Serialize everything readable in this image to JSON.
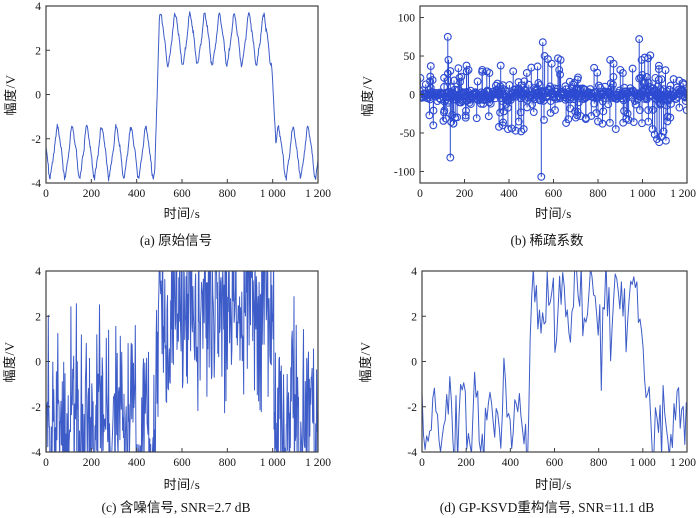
{
  "figure": {
    "background": "#ffffff"
  },
  "colors": {
    "line": "#3d5cc8",
    "stem": "#2d4bd1",
    "frame": "#3f3f3f",
    "text": "#141414"
  },
  "chart_data": [
    {
      "id": "a",
      "type": "line",
      "caption": "(a) 原始信号",
      "xlabel": "时间/s",
      "ylabel": "幅度/V",
      "xlim": [
        0,
        1200
      ],
      "ylim": [
        -4,
        4
      ],
      "xticks": [
        0,
        200,
        400,
        600,
        800,
        1000,
        1200
      ],
      "xtick_labels": [
        "0",
        "200",
        "400",
        "600",
        "800",
        "1 000",
        "1 200"
      ],
      "yticks": [
        -4,
        -2,
        0,
        2,
        4
      ],
      "ytick_labels": [
        "-4",
        "-2",
        "0",
        "2",
        "4"
      ],
      "signal": {
        "seed": 7,
        "dt": 2,
        "low_level": -2.6,
        "high_level": 2.5,
        "rise": [
          480,
          500
        ],
        "fall": [
          995,
          1015
        ],
        "sine_amp": 1.05,
        "sine_period": 65,
        "sine_phase": 2.9,
        "harmonic_amp": 0.13,
        "noise_sigma": 0.06,
        "spike_prob": 0,
        "spike_scale": 0
      },
      "description": "65 s sinusoid of ±1.05 V riding on a two-level signal: -2.6 V for 0-480 s and 1015-1200 s, +2.5 V burst for 500-995 s"
    },
    {
      "id": "b",
      "type": "stem",
      "caption": "(b) 稀疏系数",
      "xlabel": "时间/s",
      "ylabel": "幅度/V",
      "xlim": [
        0,
        1200
      ],
      "ylim": [
        -115,
        115
      ],
      "xticks": [
        0,
        200,
        400,
        600,
        800,
        1000,
        1200
      ],
      "xtick_labels": [
        "0",
        "200",
        "400",
        "600",
        "800",
        "1 000",
        "1 200"
      ],
      "yticks": [
        -100,
        -50,
        0,
        50,
        100
      ],
      "ytick_labels": [
        "-100",
        "-50",
        "0",
        "50",
        "100"
      ],
      "stems": {
        "seed": 11,
        "dense_dt": 3,
        "dense_sigma": 5,
        "dense_clip": 13,
        "medium_count": 120,
        "medium_min": 10,
        "medium_max": 38,
        "medium_power": 1.3,
        "outliers": [
          [
            60,
            -40
          ],
          [
            125,
            75
          ],
          [
            128,
            45
          ],
          [
            136,
            -82
          ],
          [
            150,
            -38
          ],
          [
            158,
            -30
          ],
          [
            210,
            30
          ],
          [
            218,
            32
          ],
          [
            280,
            32
          ],
          [
            300,
            30
          ],
          [
            312,
            28
          ],
          [
            355,
            -42
          ],
          [
            372,
            -40
          ],
          [
            395,
            -45
          ],
          [
            412,
            -44
          ],
          [
            430,
            -47
          ],
          [
            455,
            -48
          ],
          [
            466,
            -45
          ],
          [
            480,
            28
          ],
          [
            500,
            35
          ],
          [
            545,
            -107
          ],
          [
            552,
            68
          ],
          [
            560,
            50
          ],
          [
            575,
            46
          ],
          [
            592,
            40
          ],
          [
            620,
            47
          ],
          [
            632,
            45
          ],
          [
            700,
            -30
          ],
          [
            722,
            -28
          ],
          [
            745,
            -32
          ],
          [
            770,
            -28
          ],
          [
            800,
            -35
          ],
          [
            820,
            -38
          ],
          [
            855,
            45
          ],
          [
            870,
            40
          ],
          [
            880,
            -45
          ],
          [
            900,
            32
          ],
          [
            912,
            28
          ],
          [
            985,
            72
          ],
          [
            996,
            45
          ],
          [
            1010,
            48
          ],
          [
            1025,
            47
          ],
          [
            1035,
            51
          ],
          [
            1045,
            -45
          ],
          [
            1055,
            -52
          ],
          [
            1065,
            -58
          ],
          [
            1075,
            -62
          ],
          [
            1085,
            -55
          ],
          [
            1095,
            -48
          ],
          [
            1105,
            -60
          ],
          [
            1112,
            -35
          ],
          [
            1125,
            -30
          ],
          [
            1140,
            20
          ],
          [
            1165,
            18
          ],
          [
            1182,
            15
          ]
        ]
      },
      "description": "sparse coefficient stem plot, dense cluster within ±10 V around zero across 0-1200 s with isolated spikes up to +75/-107 V"
    },
    {
      "id": "c",
      "type": "line",
      "caption": "(c) 含噪信号, SNR=2.7 dB",
      "snr_db": 2.7,
      "xlabel": "时间/s",
      "ylabel": "幅度/V",
      "xlim": [
        0,
        1200
      ],
      "ylim": [
        -4,
        4
      ],
      "xticks": [
        0,
        200,
        400,
        600,
        800,
        1000,
        1200
      ],
      "xtick_labels": [
        "0",
        "200",
        "400",
        "600",
        "800",
        "1 000",
        "1 200"
      ],
      "yticks": [
        -4,
        -2,
        0,
        2,
        4
      ],
      "ytick_labels": [
        "-4",
        "-2",
        "0",
        "2",
        "4"
      ],
      "signal": {
        "seed": 23,
        "dt": 2,
        "low_level": -2.6,
        "high_level": 2.5,
        "rise": [
          480,
          500
        ],
        "fall": [
          995,
          1015
        ],
        "sine_amp": 1.05,
        "sine_period": 65,
        "sine_phase": 2.9,
        "harmonic_amp": 0.13,
        "noise_sigma": 1.9,
        "spike_prob": 0,
        "spike_scale": 0
      },
      "description": "original signal plus heavy Gaussian noise, SNR 2.7 dB, display clipped to ±4 V"
    },
    {
      "id": "d",
      "type": "line",
      "caption": "(d) GP-KSVD重构信号, SNR=11.1 dB",
      "snr_db": 11.1,
      "xlabel": "时间/s",
      "ylabel": "幅度/V",
      "xlim": [
        0,
        1200
      ],
      "ylim": [
        -4,
        4
      ],
      "xticks": [
        0,
        200,
        400,
        600,
        800,
        1000,
        1200
      ],
      "xtick_labels": [
        "0",
        "200",
        "400",
        "600",
        "800",
        "1 000",
        "1 200"
      ],
      "yticks": [
        -4,
        -2,
        0,
        2,
        4
      ],
      "ytick_labels": [
        "-4",
        "-2",
        "0",
        "2",
        "4"
      ],
      "signal": {
        "seed": 41,
        "dt": 7,
        "low_level": -2.6,
        "high_level": 2.5,
        "rise": [
          480,
          500
        ],
        "fall": [
          995,
          1015
        ],
        "sine_amp": 1.0,
        "sine_period": 65,
        "sine_phase": 2.9,
        "harmonic_amp": 0.1,
        "noise_sigma": 0.8,
        "spike_prob": 0.06,
        "spike_scale": 2.0
      },
      "description": "GP-KSVD reconstructed signal, SNR 11.1 dB, jagged trace tracking the burst waveform, display clipped to ±4 V"
    }
  ]
}
